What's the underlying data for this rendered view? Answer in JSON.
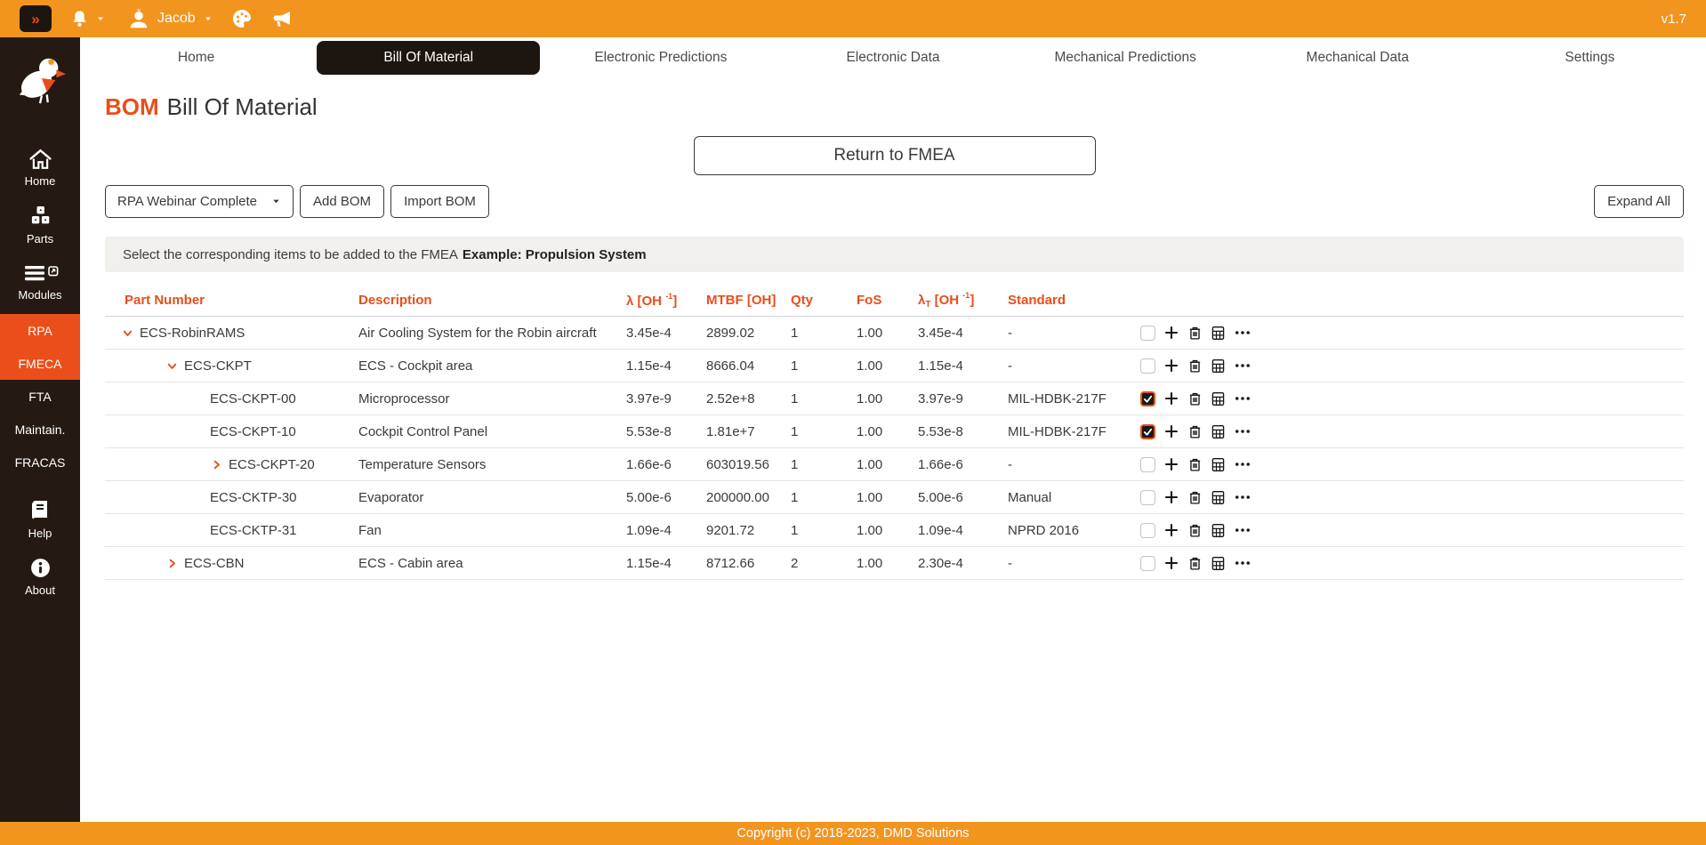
{
  "colors": {
    "orange": "#F2951F",
    "accent": "#E94E1B",
    "sidebar_bg": "#251A13",
    "dark": "#1D1610"
  },
  "topbar": {
    "collapse_button": "»",
    "user_name": "Jacob",
    "version": "v1.7"
  },
  "sidebar": {
    "main_items": [
      {
        "label": "Home",
        "icon": "home-icon"
      },
      {
        "label": "Parts",
        "icon": "parts-icon"
      },
      {
        "label": "Modules",
        "icon": "modules-icon"
      }
    ],
    "module_links": [
      {
        "label": "RPA",
        "active": true
      },
      {
        "label": "FMECA",
        "active": true
      },
      {
        "label": "FTA",
        "active": false
      },
      {
        "label": "Maintain.",
        "active": false
      },
      {
        "label": "FRACAS",
        "active": false
      }
    ],
    "bottom_items": [
      {
        "label": "Help",
        "icon": "help-icon"
      },
      {
        "label": "About",
        "icon": "about-icon"
      }
    ]
  },
  "tabs": {
    "items": [
      "Home",
      "Bill Of Material",
      "Electronic Predictions",
      "Electronic Data",
      "Mechanical Predictions",
      "Mechanical Data",
      "Settings"
    ],
    "active_index": 1
  },
  "page": {
    "badge": "BOM",
    "title": "Bill Of Material"
  },
  "toolbar": {
    "return_button": "Return to FMEA",
    "bom_select": "RPA Webinar Complete",
    "add_bom": "Add BOM",
    "import_bom": "Import BOM",
    "expand_all": "Expand All"
  },
  "notice": {
    "text": "Select the corresponding items to be added to the FMEA",
    "highlight": "Example: Propulsion System"
  },
  "table": {
    "columns": [
      {
        "label": "Part Number"
      },
      {
        "label": "Description"
      },
      {
        "label": "λ [OH ",
        "sup": "-1",
        "suffix": "]"
      },
      {
        "label": "MTBF [OH]"
      },
      {
        "label": "Qty"
      },
      {
        "label": "FoS"
      },
      {
        "label": "λ",
        "sub": "T",
        "mid": " [OH ",
        "sup": "-1",
        "suffix": "]"
      },
      {
        "label": "Standard"
      }
    ],
    "rows": [
      {
        "part": "ECS-RobinRAMS",
        "level": 0,
        "chevron": "down",
        "description": "Air Cooling System for the Robin aircraft",
        "lambda": "3.45e-4",
        "mtbf": "2899.02",
        "qty": "1",
        "fos": "1.00",
        "lambda_t": "3.45e-4",
        "standard": "-",
        "checked": false
      },
      {
        "part": "ECS-CKPT",
        "level": 1,
        "chevron": "down",
        "description": "ECS - Cockpit area",
        "lambda": "1.15e-4",
        "mtbf": "8666.04",
        "qty": "1",
        "fos": "1.00",
        "lambda_t": "1.15e-4",
        "standard": "-",
        "checked": false
      },
      {
        "part": "ECS-CKPT-00",
        "level": 2,
        "chevron": "none",
        "description": "Microprocessor",
        "lambda": "3.97e-9",
        "mtbf": "2.52e+8",
        "qty": "1",
        "fos": "1.00",
        "lambda_t": "3.97e-9",
        "standard": "MIL-HDBK-217F",
        "checked": true
      },
      {
        "part": "ECS-CKPT-10",
        "level": 2,
        "chevron": "none",
        "description": "Cockpit Control Panel",
        "lambda": "5.53e-8",
        "mtbf": "1.81e+7",
        "qty": "1",
        "fos": "1.00",
        "lambda_t": "5.53e-8",
        "standard": "MIL-HDBK-217F",
        "checked": true
      },
      {
        "part": "ECS-CKPT-20",
        "level": 2,
        "chevron": "right",
        "description": "Temperature Sensors",
        "lambda": "1.66e-6",
        "mtbf": "603019.56",
        "qty": "1",
        "fos": "1.00",
        "lambda_t": "1.66e-6",
        "standard": "-",
        "checked": false
      },
      {
        "part": "ECS-CKTP-30",
        "level": 2,
        "chevron": "none",
        "description": "Evaporator",
        "lambda": "5.00e-6",
        "mtbf": "200000.00",
        "qty": "1",
        "fos": "1.00",
        "lambda_t": "5.00e-6",
        "standard": "Manual",
        "checked": false
      },
      {
        "part": "ECS-CKTP-31",
        "level": 2,
        "chevron": "none",
        "description": "Fan",
        "lambda": "1.09e-4",
        "mtbf": "9201.72",
        "qty": "1",
        "fos": "1.00",
        "lambda_t": "1.09e-4",
        "standard": "NPRD 2016",
        "checked": false
      },
      {
        "part": "ECS-CBN",
        "level": 1,
        "chevron": "right",
        "description": "ECS - Cabin area",
        "lambda": "1.15e-4",
        "mtbf": "8712.66",
        "qty": "2",
        "fos": "1.00",
        "lambda_t": "2.30e-4",
        "standard": "-",
        "checked": false
      }
    ]
  },
  "footer": {
    "copyright": "Copyright (c) 2018-2023, DMD Solutions"
  }
}
